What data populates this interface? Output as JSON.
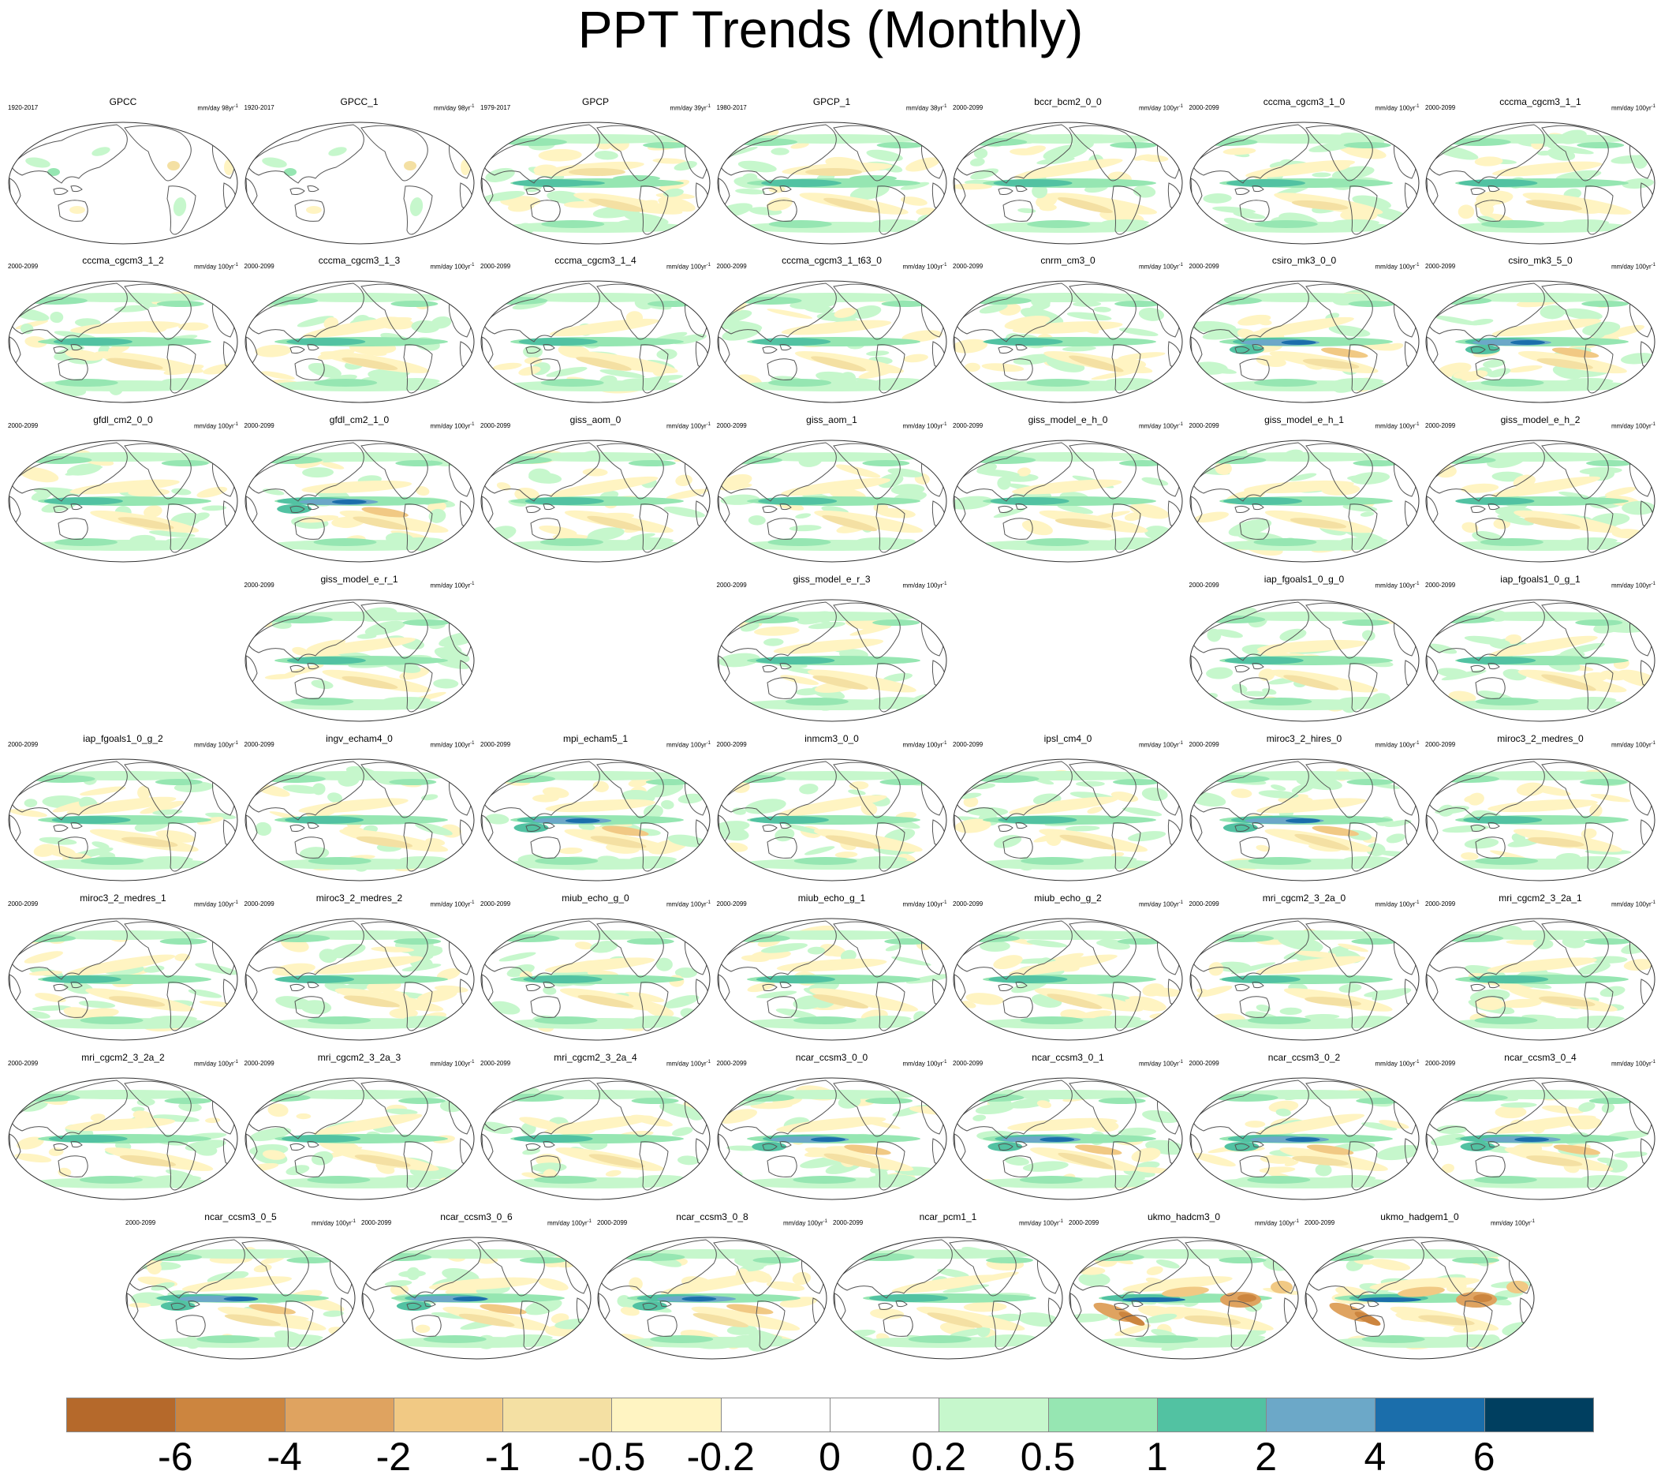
{
  "title": "PPT Trends (Monthly)",
  "colors": {
    "land": "#ffffff",
    "coast": "#555555",
    "outline": "#333333"
  },
  "panels": [
    {
      "name": "GPCC",
      "period": "1920-2017",
      "units": "mm/day 98yr",
      "kind": "obs_land"
    },
    {
      "name": "GPCC_1",
      "period": "1920-2017",
      "units": "mm/day 98yr",
      "kind": "obs_land"
    },
    {
      "name": "GPCP",
      "period": "1979-2017",
      "units": "mm/day 39yr",
      "kind": "obs"
    },
    {
      "name": "GPCP_1",
      "period": "1980-2017",
      "units": "mm/day 38yr",
      "kind": "obs"
    },
    {
      "name": "bccr_bcm2_0_0",
      "period": "2000-2099",
      "units": "mm/day 100yr",
      "kind": "model"
    },
    {
      "name": "cccma_cgcm3_1_0",
      "period": "2000-2099",
      "units": "mm/day 100yr",
      "kind": "model"
    },
    {
      "name": "cccma_cgcm3_1_1",
      "period": "2000-2099",
      "units": "mm/day 100yr",
      "kind": "model"
    },
    {
      "name": "cccma_cgcm3_1_2",
      "period": "2000-2099",
      "units": "mm/day 100yr",
      "kind": "model"
    },
    {
      "name": "cccma_cgcm3_1_3",
      "period": "2000-2099",
      "units": "mm/day 100yr",
      "kind": "model"
    },
    {
      "name": "cccma_cgcm3_1_4",
      "period": "2000-2099",
      "units": "mm/day 100yr",
      "kind": "model"
    },
    {
      "name": "cccma_cgcm3_1_t63_0",
      "period": "2000-2099",
      "units": "mm/day 100yr",
      "kind": "model"
    },
    {
      "name": "cnrm_cm3_0",
      "period": "2000-2099",
      "units": "mm/day 100yr",
      "kind": "model"
    },
    {
      "name": "csiro_mk3_0_0",
      "period": "2000-2099",
      "units": "mm/day 100yr",
      "kind": "model_strong"
    },
    {
      "name": "csiro_mk3_5_0",
      "period": "2000-2099",
      "units": "mm/day 100yr",
      "kind": "model_strong"
    },
    {
      "name": "gfdl_cm2_0_0",
      "period": "2000-2099",
      "units": "mm/day 100yr",
      "kind": "model"
    },
    {
      "name": "gfdl_cm2_1_0",
      "period": "2000-2099",
      "units": "mm/day 100yr",
      "kind": "model_strong"
    },
    {
      "name": "giss_aom_0",
      "period": "2000-2099",
      "units": "mm/day 100yr",
      "kind": "model"
    },
    {
      "name": "giss_aom_1",
      "period": "2000-2099",
      "units": "mm/day 100yr",
      "kind": "model"
    },
    {
      "name": "giss_model_e_h_0",
      "period": "2000-2099",
      "units": "mm/day 100yr",
      "kind": "model"
    },
    {
      "name": "giss_model_e_h_1",
      "period": "2000-2099",
      "units": "mm/day 100yr",
      "kind": "model"
    },
    {
      "name": "giss_model_e_h_2",
      "period": "2000-2099",
      "units": "mm/day 100yr",
      "kind": "model"
    },
    {
      "name": "giss_model_e_r_1",
      "period": "2000-2099",
      "units": "mm/day 100yr",
      "kind": "model"
    },
    {
      "name": "giss_model_e_r_3",
      "period": "2000-2099",
      "units": "mm/day 100yr",
      "kind": "model"
    },
    {
      "name": "iap_fgoals1_0_g_0",
      "period": "2000-2099",
      "units": "mm/day 100yr",
      "kind": "model"
    },
    {
      "name": "iap_fgoals1_0_g_1",
      "period": "2000-2099",
      "units": "mm/day 100yr",
      "kind": "model"
    },
    {
      "name": "iap_fgoals1_0_g_2",
      "period": "2000-2099",
      "units": "mm/day 100yr",
      "kind": "model"
    },
    {
      "name": "ingv_echam4_0",
      "period": "2000-2099",
      "units": "mm/day 100yr",
      "kind": "model"
    },
    {
      "name": "mpi_echam5_1",
      "period": "2000-2099",
      "units": "mm/day 100yr",
      "kind": "model_strong"
    },
    {
      "name": "inmcm3_0_0",
      "period": "2000-2099",
      "units": "mm/day 100yr",
      "kind": "model"
    },
    {
      "name": "ipsl_cm4_0",
      "period": "2000-2099",
      "units": "mm/day 100yr",
      "kind": "model"
    },
    {
      "name": "miroc3_2_hires_0",
      "period": "2000-2099",
      "units": "mm/day 100yr",
      "kind": "model_strong"
    },
    {
      "name": "miroc3_2_medres_0",
      "period": "2000-2099",
      "units": "mm/day 100yr",
      "kind": "model"
    },
    {
      "name": "miroc3_2_medres_1",
      "period": "2000-2099",
      "units": "mm/day 100yr",
      "kind": "model"
    },
    {
      "name": "miroc3_2_medres_2",
      "period": "2000-2099",
      "units": "mm/day 100yr",
      "kind": "model"
    },
    {
      "name": "miub_echo_g_0",
      "period": "2000-2099",
      "units": "mm/day 100yr",
      "kind": "model"
    },
    {
      "name": "miub_echo_g_1",
      "period": "2000-2099",
      "units": "mm/day 100yr",
      "kind": "model"
    },
    {
      "name": "miub_echo_g_2",
      "period": "2000-2099",
      "units": "mm/day 100yr",
      "kind": "model"
    },
    {
      "name": "mri_cgcm2_3_2a_0",
      "period": "2000-2099",
      "units": "mm/day 100yr",
      "kind": "model"
    },
    {
      "name": "mri_cgcm2_3_2a_1",
      "period": "2000-2099",
      "units": "mm/day 100yr",
      "kind": "model"
    },
    {
      "name": "mri_cgcm2_3_2a_2",
      "period": "2000-2099",
      "units": "mm/day 100yr",
      "kind": "model"
    },
    {
      "name": "mri_cgcm2_3_2a_3",
      "period": "2000-2099",
      "units": "mm/day 100yr",
      "kind": "model"
    },
    {
      "name": "mri_cgcm2_3_2a_4",
      "period": "2000-2099",
      "units": "mm/day 100yr",
      "kind": "model"
    },
    {
      "name": "ncar_ccsm3_0_0",
      "period": "2000-2099",
      "units": "mm/day 100yr",
      "kind": "model_strong"
    },
    {
      "name": "ncar_ccsm3_0_1",
      "period": "2000-2099",
      "units": "mm/day 100yr",
      "kind": "model_strong"
    },
    {
      "name": "ncar_ccsm3_0_2",
      "period": "2000-2099",
      "units": "mm/day 100yr",
      "kind": "model_strong"
    },
    {
      "name": "ncar_ccsm3_0_4",
      "period": "2000-2099",
      "units": "mm/day 100yr",
      "kind": "model_strong"
    },
    {
      "name": "ncar_ccsm3_0_5",
      "period": "2000-2099",
      "units": "mm/day 100yr",
      "kind": "model_strong"
    },
    {
      "name": "ncar_ccsm3_0_6",
      "period": "2000-2099",
      "units": "mm/day 100yr",
      "kind": "model_strong"
    },
    {
      "name": "ncar_ccsm3_0_8",
      "period": "2000-2099",
      "units": "mm/day 100yr",
      "kind": "model_strong"
    },
    {
      "name": "ncar_pcm1_1",
      "period": "2000-2099",
      "units": "mm/day 100yr",
      "kind": "model"
    },
    {
      "name": "ukmo_hadcm3_0",
      "period": "2000-2099",
      "units": "mm/day 100yr",
      "kind": "model_dry"
    },
    {
      "name": "ukmo_hadgem1_0",
      "period": "2000-2099",
      "units": "mm/day 100yr",
      "kind": "model_dry"
    }
  ],
  "colorbar": {
    "colors": [
      "#b5692b",
      "#cc853f",
      "#dfa360",
      "#f1c984",
      "#f4e0a3",
      "#fff4c2",
      "#ffffff",
      "#ffffff",
      "#c6f7cc",
      "#96e6b2",
      "#52c2a2",
      "#6ca8c8",
      "#1b6eab",
      "#003f60"
    ],
    "labels": [
      "-6",
      "-4",
      "-2",
      "-1",
      "-0.5",
      "-0.2",
      "0",
      "0.2",
      "0.5",
      "1",
      "2",
      "4",
      "6"
    ]
  }
}
